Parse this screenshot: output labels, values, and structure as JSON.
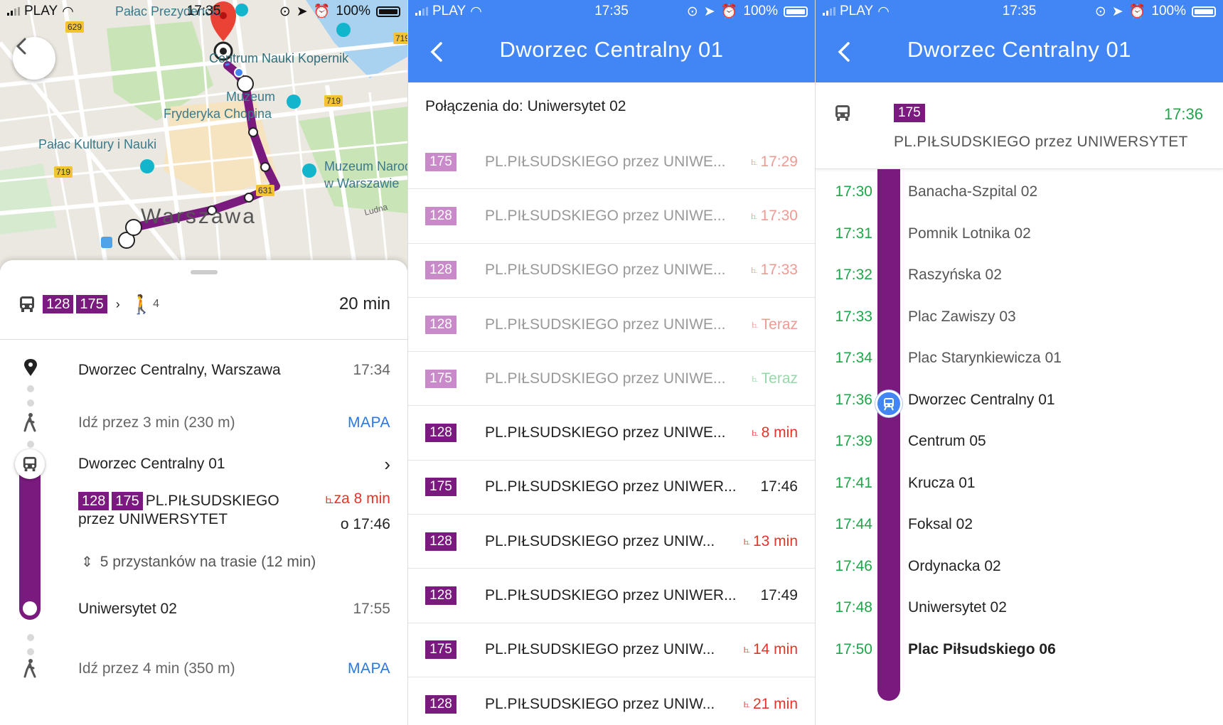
{
  "colors": {
    "route": "#7b1a7e",
    "route_past": "#c98ac9",
    "appbar": "#4285f4",
    "late": "#e5342a",
    "ontime": "#1fa54a",
    "link": "#2a77e4"
  },
  "status1": {
    "carrier": "PLAY",
    "time": "17:35",
    "battery": "100%"
  },
  "status2": {
    "carrier": "PLAY",
    "time": "17:35",
    "battery": "100%"
  },
  "status3": {
    "carrier": "PLAY",
    "time": "17:35",
    "battery": "100%"
  },
  "map": {
    "labels": {
      "palac_prez": "Pałac Prezydencki",
      "centrum_nauki": "Centrum Nauki Kopernik",
      "muzeum": "Muzeum",
      "chopin": "Fryderyka Chopina",
      "palac_kultury": "Pałac Kultury i Nauki",
      "muzeum_nar1": "Muzeum Narodowe",
      "muzeum_nar2": "w Warszawie",
      "warszawa": "Warszawa",
      "ludna": "Ludna"
    },
    "roads": {
      "r629": "629",
      "r719a": "719",
      "r719b": "719",
      "r719c": "719",
      "r631": "631"
    }
  },
  "summary": {
    "lines": [
      "128",
      "175"
    ],
    "walk_count": "4",
    "duration": "20 min"
  },
  "itinerary": {
    "start_name": "Dworzec Centralny, Warszawa",
    "start_time": "17:34",
    "walk1": "Idź przez 3 min (230 m)",
    "walk1_link": "MAPA",
    "stop_name": "Dworzec Centralny 01",
    "lines": [
      "128",
      "175"
    ],
    "direction1": "PL.PIŁSUDSKIEGO",
    "direction2": "przez UNIWERSYTET",
    "realtime": "za 8 min",
    "scheduled": "o 17:46",
    "stops_info": "5 przystanków na trasie (12 min)",
    "end_name": "Uniwersytet 02",
    "end_time": "17:55",
    "walk2": "Idź przez 4 min (350 m)",
    "walk2_link": "MAPA"
  },
  "departures_screen": {
    "title": "Dworzec Centralny 01",
    "subheading": "Połączenia do: Uniwersytet 02",
    "rows": [
      {
        "line": "175",
        "dest": "PL.PIŁSUDSKIEGO przez UNIWE...",
        "when": "17:29",
        "kind": "red",
        "past": true,
        "rt": true
      },
      {
        "line": "128",
        "dest": "PL.PIŁSUDSKIEGO przez UNIWE...",
        "when": "17:30",
        "kind": "red",
        "past": true,
        "rt": true
      },
      {
        "line": "128",
        "dest": "PL.PIŁSUDSKIEGO przez UNIWE...",
        "when": "17:33",
        "kind": "red",
        "past": true,
        "rt": true
      },
      {
        "line": "128",
        "dest": "PL.PIŁSUDSKIEGO przez UNIWE...",
        "when": "Teraz",
        "kind": "red",
        "past": true,
        "rt": true
      },
      {
        "line": "175",
        "dest": "PL.PIŁSUDSKIEGO przez UNIWE...",
        "when": "Teraz",
        "kind": "green",
        "past": true,
        "rt": true
      },
      {
        "line": "128",
        "dest": "PL.PIŁSUDSKIEGO przez UNIWE...",
        "when": "8 min",
        "kind": "red",
        "past": false,
        "rt": true
      },
      {
        "line": "175",
        "dest": "PL.PIŁSUDSKIEGO przez UNIWER...",
        "when": "17:46",
        "kind": "plain",
        "past": false,
        "rt": false
      },
      {
        "line": "128",
        "dest": "PL.PIŁSUDSKIEGO przez UNIW...",
        "when": "13 min",
        "kind": "red",
        "past": false,
        "rt": true
      },
      {
        "line": "128",
        "dest": "PL.PIŁSUDSKIEGO przez UNIWER...",
        "when": "17:49",
        "kind": "plain",
        "past": false,
        "rt": false
      },
      {
        "line": "175",
        "dest": "PL.PIŁSUDSKIEGO przez UNIW...",
        "when": "14 min",
        "kind": "red",
        "past": false,
        "rt": true
      },
      {
        "line": "128",
        "dest": "PL.PIŁSUDSKIEGO przez UNIW...",
        "when": "21 min",
        "kind": "red",
        "past": false,
        "rt": true
      }
    ]
  },
  "trip_screen": {
    "title": "Dworzec Centralny 01",
    "line": "175",
    "time": "17:36",
    "destination": "PL.PIŁSUDSKIEGO przez UNIWERSYTET",
    "stops": [
      {
        "time": "17:30",
        "name": "Banacha-Szpital 02",
        "state": "before"
      },
      {
        "time": "17:31",
        "name": "Pomnik Lotnika 02",
        "state": "before"
      },
      {
        "time": "17:32",
        "name": "Raszyńska 02",
        "state": "before"
      },
      {
        "time": "17:33",
        "name": "Plac Zawiszy 03",
        "state": "before"
      },
      {
        "time": "17:34",
        "name": "Plac Starynkiewicza 01",
        "state": "before"
      },
      {
        "time": "17:36",
        "name": "Dworzec Centralny 01",
        "state": "current"
      },
      {
        "time": "17:39",
        "name": "Centrum 05",
        "state": "after"
      },
      {
        "time": "17:41",
        "name": "Krucza 01",
        "state": "after"
      },
      {
        "time": "17:44",
        "name": "Foksal 02",
        "state": "after"
      },
      {
        "time": "17:46",
        "name": "Ordynacka 02",
        "state": "after"
      },
      {
        "time": "17:48",
        "name": "Uniwersytet 02",
        "state": "after"
      },
      {
        "time": "17:50",
        "name": "Plac Piłsudskiego 06",
        "state": "last"
      }
    ]
  }
}
